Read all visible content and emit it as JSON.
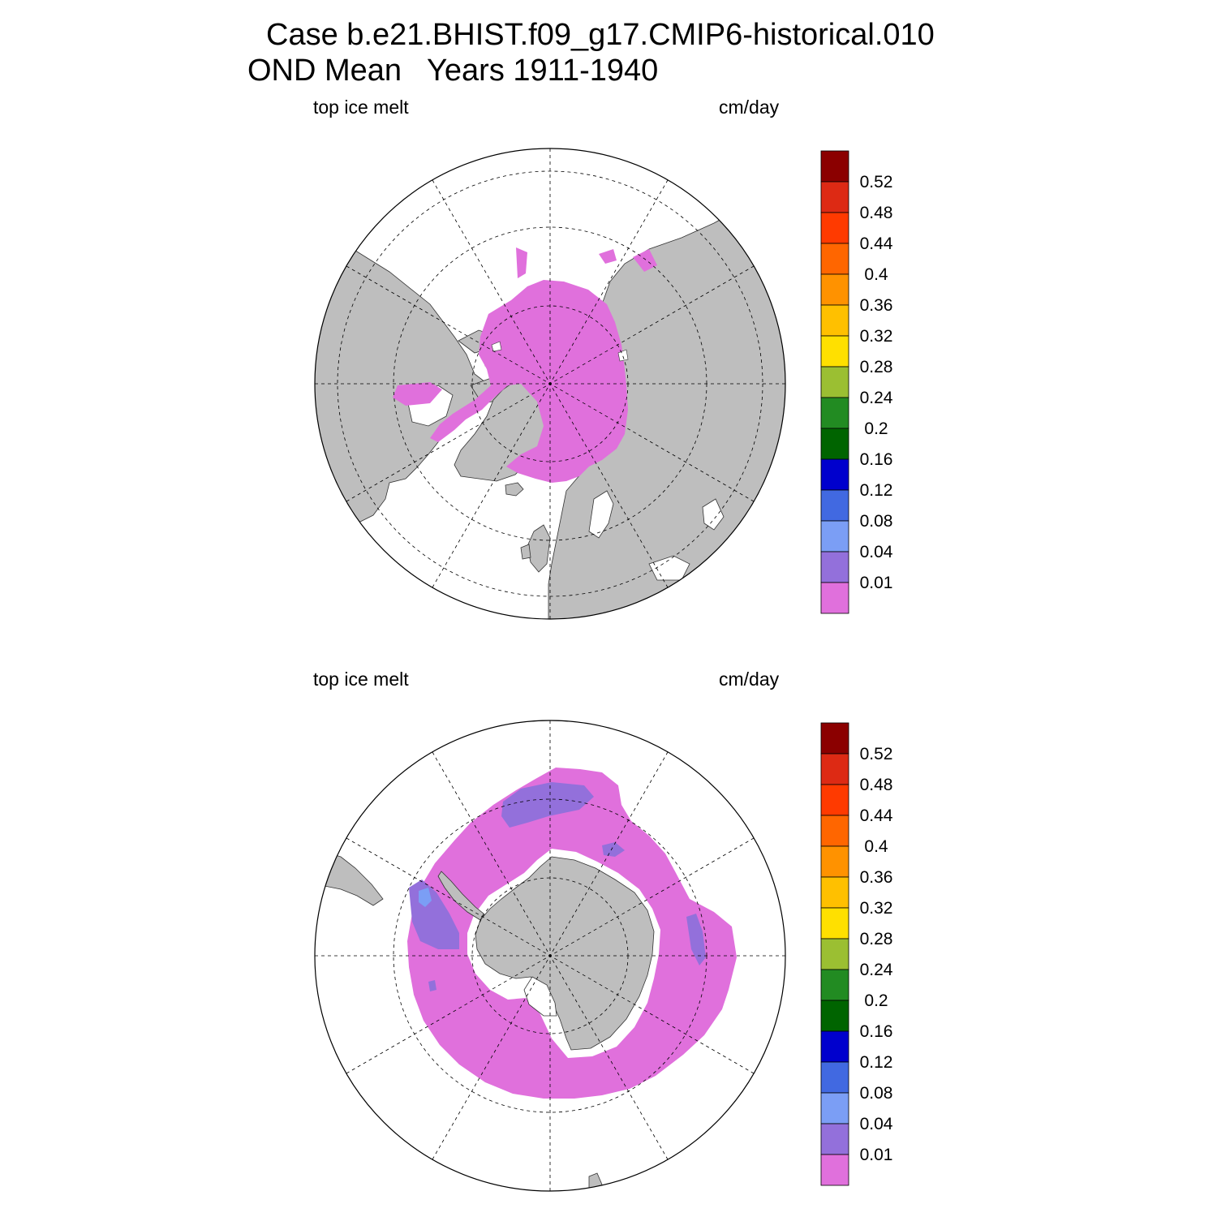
{
  "title": {
    "line1": "Case b.e21.BHIST.f09_g17.CMIP6-historical.010",
    "line2": "OND Mean   Years 1911-1940"
  },
  "colors": {
    "land": "#bebebe",
    "background": "#ffffff",
    "ice_lowest": "#e070dc"
  },
  "colorbar": {
    "labels": [
      "0.52",
      "0.48",
      "0.44",
      "0.4",
      "0.36",
      "0.32",
      "0.28",
      "0.24",
      "0.2",
      "0.16",
      "0.12",
      "0.08",
      "0.04",
      "0.01"
    ],
    "colors_top_to_bottom": [
      "#8b0000",
      "#dd2a14",
      "#ff3a00",
      "#ff6600",
      "#ff9200",
      "#ffc000",
      "#ffe000",
      "#9bbf32",
      "#228b22",
      "#006400",
      "#0000cd",
      "#4169e1",
      "#7b9ef5",
      "#9370db",
      "#e070dc"
    ]
  },
  "panels": [
    {
      "id": "north",
      "left_label": "top ice melt",
      "right_label": "cm/day",
      "hemisphere": "Northern Hemisphere polar stereographic",
      "field": "top ice melt",
      "units": "cm/day",
      "dominant_level": "< 0.01"
    },
    {
      "id": "south",
      "left_label": "top ice melt",
      "right_label": "cm/day",
      "hemisphere": "Southern Hemisphere polar stereographic",
      "field": "top ice melt",
      "units": "cm/day",
      "dominant_level": "< 0.01"
    }
  ]
}
